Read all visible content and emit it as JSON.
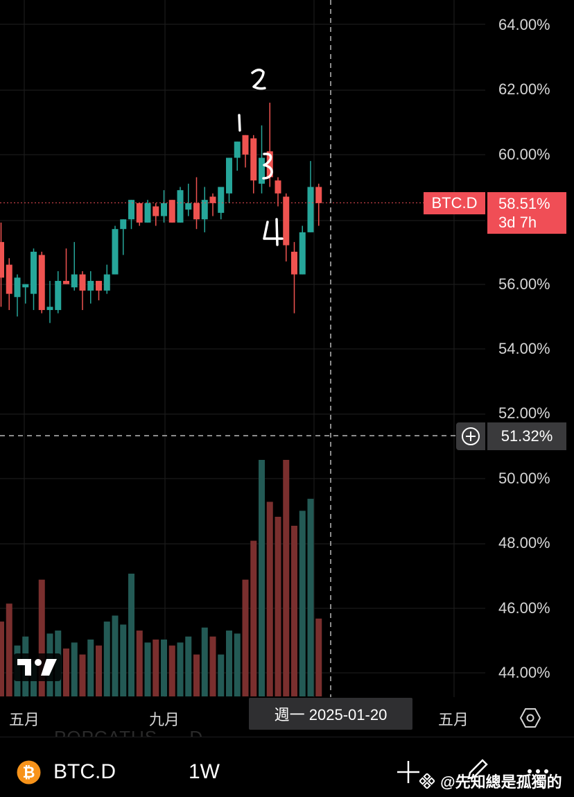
{
  "symbol": {
    "name": "BTC.D",
    "timeframe": "1W",
    "ghost_label": "POPCATUS",
    "ghost_suffix": "D"
  },
  "price_tag": {
    "label": "BTC.D",
    "value": "58.51%",
    "countdown": "3d 7h"
  },
  "crosshair": {
    "value": "51.32%",
    "date_label": "週一 2025-01-20"
  },
  "x_axis_labels": [
    "五月",
    "九月",
    "五月"
  ],
  "watermark": "@先知總是孤獨的",
  "colors": {
    "up": "#26a69a",
    "down": "#ef5350",
    "price_tag": "#f04e56"
  },
  "annotations": [
    "1",
    "2",
    "3",
    "4"
  ],
  "chart_data": {
    "type": "candlestick",
    "y_axis": {
      "ticks": [
        "64.00%",
        "62.00%",
        "60.00%",
        "56.00%",
        "54.00%",
        "52.00%",
        "50.00%",
        "48.00%",
        "46.00%",
        "44.00%"
      ],
      "ylim": [
        43.0,
        64.7
      ]
    },
    "last_price": 58.51,
    "crosshair_value": 51.32,
    "candles": [
      {
        "o": 57.3,
        "h": 57.9,
        "l": 55.3,
        "c": 56.2,
        "v": 25
      },
      {
        "o": 56.6,
        "h": 56.8,
        "l": 55.2,
        "c": 55.7,
        "v": 31
      },
      {
        "o": 55.6,
        "h": 56.3,
        "l": 55.0,
        "c": 56.2,
        "v": 17
      },
      {
        "o": 55.9,
        "h": 56.0,
        "l": 55.4,
        "c": 56.0,
        "v": 20
      },
      {
        "o": 55.7,
        "h": 57.1,
        "l": 55.2,
        "c": 57.0,
        "v": 11
      },
      {
        "o": 56.9,
        "h": 57.0,
        "l": 55.1,
        "c": 55.2,
        "v": 39
      },
      {
        "o": 55.2,
        "h": 56.1,
        "l": 54.8,
        "c": 55.3,
        "v": 21
      },
      {
        "o": 55.2,
        "h": 56.4,
        "l": 55.1,
        "c": 56.1,
        "v": 22
      },
      {
        "o": 56.1,
        "h": 57.1,
        "l": 56.0,
        "c": 56.0,
        "v": 16
      },
      {
        "o": 55.9,
        "h": 57.3,
        "l": 55.8,
        "c": 56.3,
        "v": 18
      },
      {
        "o": 56.3,
        "h": 56.4,
        "l": 55.2,
        "c": 55.8,
        "v": 14
      },
      {
        "o": 55.8,
        "h": 56.4,
        "l": 55.4,
        "c": 56.1,
        "v": 19
      },
      {
        "o": 56.1,
        "h": 56.1,
        "l": 55.5,
        "c": 55.8,
        "v": 17
      },
      {
        "o": 55.8,
        "h": 56.6,
        "l": 55.7,
        "c": 56.3,
        "v": 25
      },
      {
        "o": 56.3,
        "h": 57.8,
        "l": 56.3,
        "c": 57.7,
        "v": 27
      },
      {
        "o": 57.7,
        "h": 58.0,
        "l": 56.9,
        "c": 58.0,
        "v": 24
      },
      {
        "o": 58.0,
        "h": 58.6,
        "l": 57.7,
        "c": 58.6,
        "v": 41
      },
      {
        "o": 58.5,
        "h": 58.5,
        "l": 57.8,
        "c": 57.9,
        "v": 22
      },
      {
        "o": 57.9,
        "h": 58.6,
        "l": 57.9,
        "c": 58.5,
        "v": 18
      },
      {
        "o": 58.4,
        "h": 58.5,
        "l": 57.8,
        "c": 58.1,
        "v": 19
      },
      {
        "o": 58.1,
        "h": 58.9,
        "l": 57.9,
        "c": 58.5,
        "v": 19
      },
      {
        "o": 58.6,
        "h": 58.6,
        "l": 57.9,
        "c": 57.9,
        "v": 17
      },
      {
        "o": 57.9,
        "h": 59.0,
        "l": 57.9,
        "c": 58.9,
        "v": 18
      },
      {
        "o": 58.3,
        "h": 59.1,
        "l": 58.1,
        "c": 58.5,
        "v": 20
      },
      {
        "o": 58.5,
        "h": 59.3,
        "l": 57.7,
        "c": 58.0,
        "v": 14
      },
      {
        "o": 58.0,
        "h": 59.0,
        "l": 57.6,
        "c": 58.6,
        "v": 23
      },
      {
        "o": 58.7,
        "h": 58.8,
        "l": 58.1,
        "c": 58.5,
        "v": 20
      },
      {
        "o": 58.2,
        "h": 59.0,
        "l": 58.0,
        "c": 59.0,
        "v": 14
      },
      {
        "o": 58.8,
        "h": 59.9,
        "l": 58.5,
        "c": 59.9,
        "v": 22
      },
      {
        "o": 59.9,
        "h": 60.4,
        "l": 59.5,
        "c": 60.4,
        "v": 21
      },
      {
        "o": 60.6,
        "h": 60.6,
        "l": 59.6,
        "c": 60.0,
        "v": 39
      },
      {
        "o": 60.5,
        "h": 60.6,
        "l": 58.8,
        "c": 59.2,
        "v": 52
      },
      {
        "o": 59.1,
        "h": 60.9,
        "l": 58.8,
        "c": 59.9,
        "v": 79
      },
      {
        "o": 60.1,
        "h": 61.6,
        "l": 59.0,
        "c": 59.3,
        "v": 65
      },
      {
        "o": 59.2,
        "h": 59.3,
        "l": 58.4,
        "c": 58.8,
        "v": 60
      },
      {
        "o": 58.7,
        "h": 58.8,
        "l": 56.7,
        "c": 57.2,
        "v": 79
      },
      {
        "o": 57.0,
        "h": 57.3,
        "l": 55.1,
        "c": 56.3,
        "v": 57
      },
      {
        "o": 56.3,
        "h": 57.8,
        "l": 56.3,
        "c": 57.6,
        "v": 62
      },
      {
        "o": 57.6,
        "h": 59.8,
        "l": 57.6,
        "c": 59.0,
        "v": 66
      },
      {
        "o": 59.0,
        "h": 59.1,
        "l": 57.8,
        "c": 58.5,
        "v": 26
      }
    ]
  }
}
